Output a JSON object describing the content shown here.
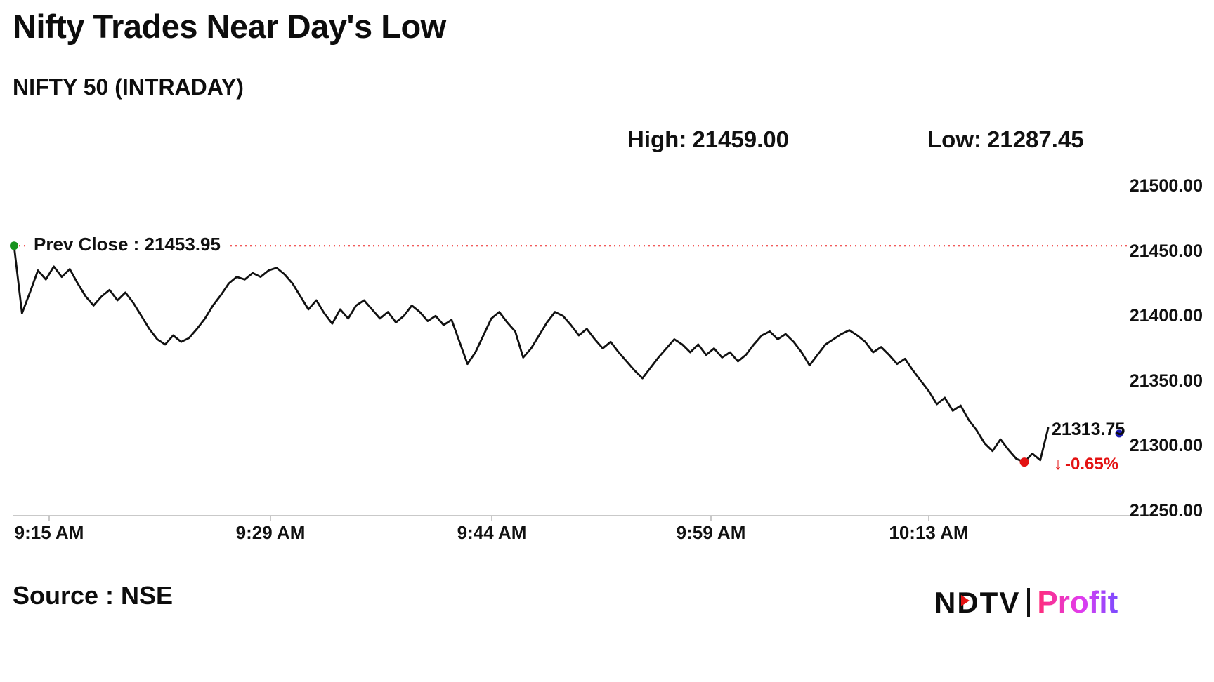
{
  "header": {
    "title": "Nifty Trades Near Day's Low",
    "subtitle": "NIFTY 50 (INTRADAY)"
  },
  "stats": {
    "high_label": "High:",
    "high_value": "21459.00",
    "low_label": "Low:",
    "low_value": "21287.45"
  },
  "annotations": {
    "prev_close_label": "Prev Close : 21453.95",
    "last_price": "21313.75",
    "change_arrow": "↓",
    "change_pct": "-0.65%"
  },
  "footer": {
    "source": "Source : NSE",
    "brand_left": "NDTV",
    "brand_separator": "|",
    "brand_right": "Profit"
  },
  "colors": {
    "line": "#111111",
    "prev_close_line": "#ee2222",
    "axis_line": "#c9c9c9",
    "start_dot": "#18921d",
    "low_dot": "#e31212",
    "edge_dot": "#1b1bb0",
    "change_text": "#e31212"
  },
  "chart_data": {
    "type": "line",
    "title": "NIFTY 50 (INTRADAY)",
    "xlabel": "",
    "ylabel": "",
    "ylim": [
      21250,
      21500
    ],
    "grid": false,
    "legend_position": "none",
    "prev_close": 21453.95,
    "day_high": 21459.0,
    "day_low": 21287.45,
    "last_price": 21313.75,
    "change_pct": -0.65,
    "y_ticks": [
      {
        "label": "21500.00",
        "value": 21500
      },
      {
        "label": "21450.00",
        "value": 21450
      },
      {
        "label": "21400.00",
        "value": 21400
      },
      {
        "label": "21350.00",
        "value": 21350
      },
      {
        "label": "21300.00",
        "value": 21300
      },
      {
        "label": "21250.00",
        "value": 21250
      }
    ],
    "x_ticks": [
      "9:15 AM",
      "9:29 AM",
      "9:44 AM",
      "9:59 AM",
      "10:13 AM"
    ],
    "series": [
      {
        "name": "NIFTY 50",
        "values": [
          21453.95,
          21402,
          21418,
          21435,
          21428,
          21438,
          21430,
          21436,
          21425,
          21415,
          21408,
          21415,
          21420,
          21412,
          21418,
          21410,
          21400,
          21390,
          21382,
          21378,
          21385,
          21380,
          21383,
          21390,
          21398,
          21408,
          21416,
          21425,
          21430,
          21428,
          21433,
          21430,
          21435,
          21437,
          21432,
          21425,
          21415,
          21405,
          21412,
          21402,
          21394,
          21405,
          21398,
          21408,
          21412,
          21405,
          21398,
          21403,
          21395,
          21400,
          21408,
          21403,
          21396,
          21400,
          21393,
          21397,
          21380,
          21363,
          21372,
          21385,
          21398,
          21403,
          21395,
          21388,
          21368,
          21375,
          21385,
          21395,
          21403,
          21400,
          21393,
          21385,
          21390,
          21382,
          21375,
          21380,
          21372,
          21365,
          21358,
          21352,
          21360,
          21368,
          21375,
          21382,
          21378,
          21372,
          21378,
          21370,
          21375,
          21368,
          21372,
          21365,
          21370,
          21378,
          21385,
          21388,
          21382,
          21386,
          21380,
          21372,
          21362,
          21370,
          21378,
          21382,
          21386,
          21389,
          21385,
          21380,
          21372,
          21376,
          21370,
          21363,
          21367,
          21358,
          21350,
          21342,
          21332,
          21337,
          21327,
          21331,
          21320,
          21312,
          21302,
          21296,
          21305,
          21297,
          21290,
          21287.45,
          21294,
          21289,
          21313.75
        ]
      }
    ]
  }
}
